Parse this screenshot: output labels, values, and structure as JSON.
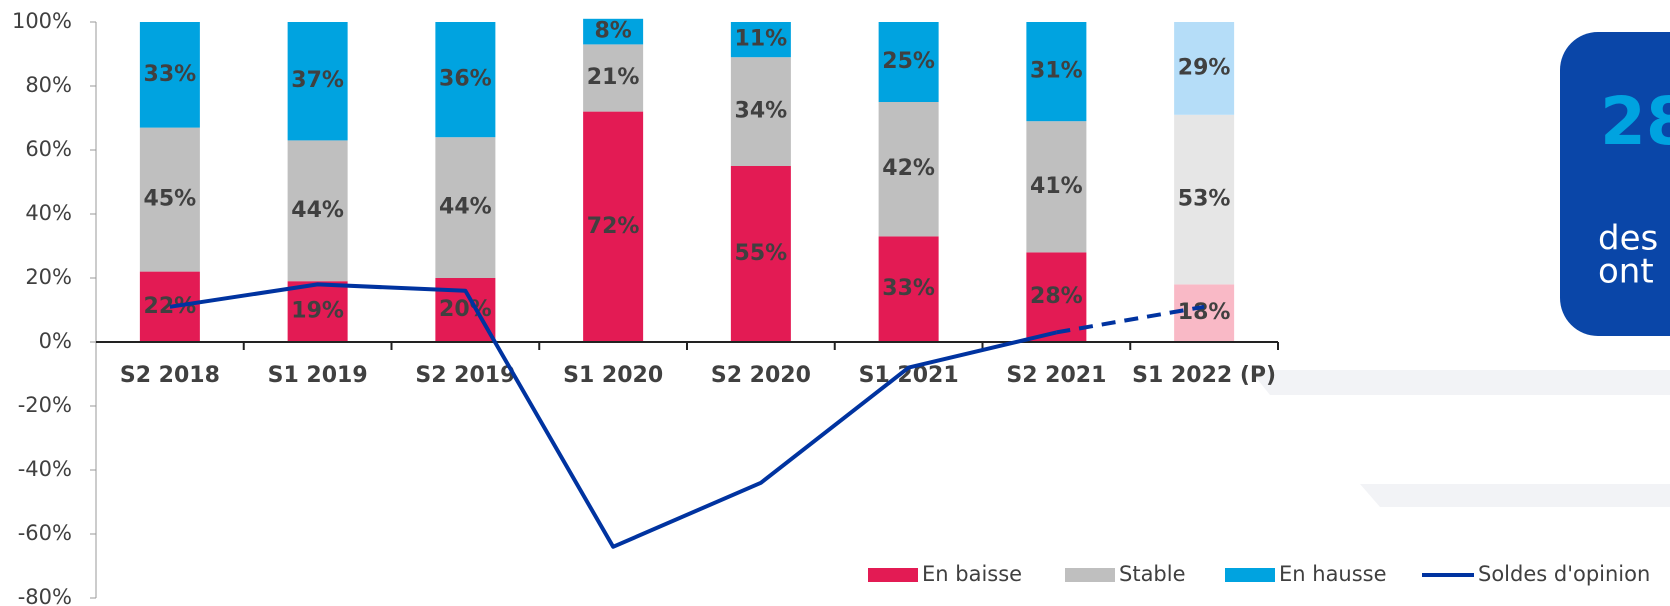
{
  "chart_data": {
    "type": "bar",
    "categories": [
      "S2 2018",
      "S1 2019",
      "S2 2019",
      "S1 2020",
      "S2 2020",
      "S1 2021",
      "S2 2021",
      "S1 2022 (P)"
    ],
    "series": [
      {
        "name": "En baisse",
        "color": "#e31b54",
        "projection_color": "#f9b9c6",
        "values": [
          22,
          19,
          20,
          72,
          55,
          33,
          28,
          18
        ],
        "value_labels": [
          "22%",
          "19%",
          "20%",
          "72%",
          "55%",
          "33%",
          "28%",
          "18%"
        ]
      },
      {
        "name": "Stable",
        "color": "#bfbfbf",
        "projection_color": "#e6e6e6",
        "values": [
          45,
          44,
          44,
          21,
          34,
          42,
          41,
          53
        ],
        "value_labels": [
          "45%",
          "44%",
          "44%",
          "21%",
          "34%",
          "42%",
          "41%",
          "53%"
        ]
      },
      {
        "name": "En hausse",
        "color": "#00a3e0",
        "projection_color": "#b5ddf8",
        "values": [
          33,
          37,
          36,
          8,
          11,
          25,
          31,
          29
        ],
        "value_labels": [
          "33%",
          "37%",
          "36%",
          "8%",
          "11%",
          "25%",
          "31%",
          "29%"
        ]
      }
    ],
    "line_series": {
      "name": "Soldes d'opinion",
      "color": "#0033a0",
      "values": [
        11,
        18,
        16,
        -64,
        -44,
        -8,
        3,
        11
      ],
      "dash_from_index": 6
    },
    "projection_index": 7,
    "ylim": [
      -80,
      100
    ],
    "yticks": [
      {
        "value": -80,
        "label": "-80%"
      },
      {
        "value": -60,
        "label": "-60%"
      },
      {
        "value": -40,
        "label": "-40%"
      },
      {
        "value": -20,
        "label": "-20%"
      },
      {
        "value": 0,
        "label": "0%"
      },
      {
        "value": 20,
        "label": "20%"
      },
      {
        "value": 40,
        "label": "40%"
      },
      {
        "value": 60,
        "label": "60%"
      },
      {
        "value": 80,
        "label": "80%"
      },
      {
        "value": 100,
        "label": "100%"
      }
    ],
    "legend": "bottom-right"
  },
  "callout": {
    "number": "28",
    "line1": "des",
    "line2": "ont"
  }
}
